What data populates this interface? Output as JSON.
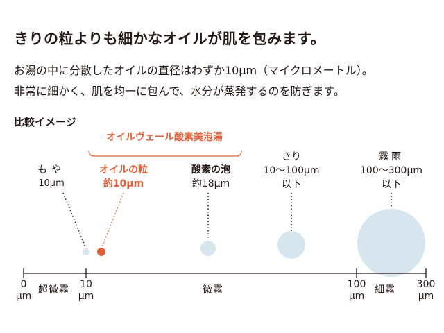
{
  "headline": "きりの粒よりも細かなオイルが肌を包みます。",
  "body_lines": [
    "お湯の中に分散したオイルの直径はわずか10µm（マイクロメートル）。",
    "非常に細かく、肌を均一に包んで、水分が蒸発するのを防ぎます。"
  ],
  "compare_title": "比較イメージ",
  "product_label": "オイルヴェール酸素美泡湯",
  "particles": [
    {
      "name": "もや",
      "size": "10µm",
      "highlight": false
    },
    {
      "name": "オイルの粒",
      "size": "約10µm",
      "highlight": true
    },
    {
      "name": "酸素の泡",
      "size": "約18µm",
      "highlight": false
    },
    {
      "name": "きり",
      "size": "10〜100µm",
      "sub": "以下",
      "highlight": false
    },
    {
      "name": "霧雨",
      "size": "100〜300µm",
      "sub": "以下",
      "highlight": false
    }
  ],
  "axis": {
    "ticks": [
      {
        "value": "0",
        "unit": "µm"
      },
      {
        "value": "10",
        "unit": "µm"
      },
      {
        "value": "100",
        "unit": "µm"
      },
      {
        "value": "300",
        "unit": "µm"
      }
    ],
    "ranges": [
      "超微霧",
      "微霧",
      "細霧"
    ]
  },
  "colors": {
    "text": "#231815",
    "accent": "#e0603a",
    "bubble": "#d6e5ee",
    "axis": "#231815"
  }
}
